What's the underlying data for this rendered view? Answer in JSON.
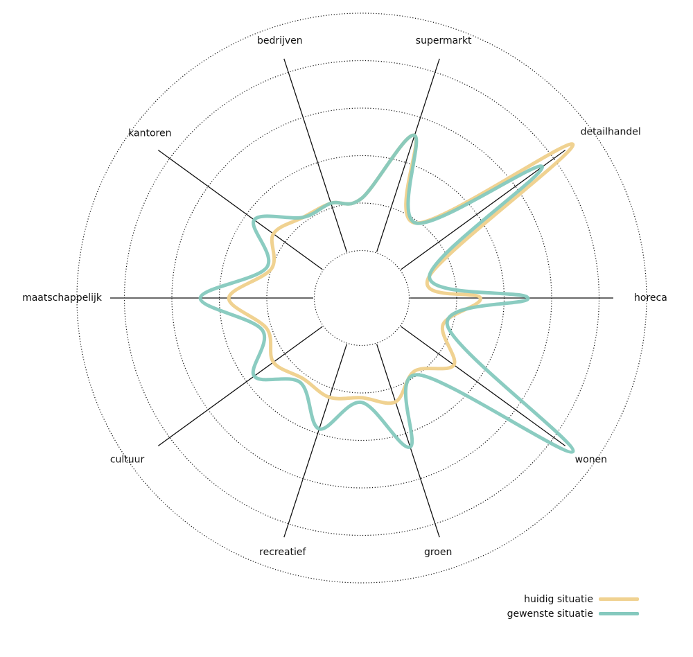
{
  "chart_data": {
    "type": "radar",
    "title": "",
    "axes": [
      "horeca",
      "wonen",
      "groen",
      "recreatief",
      "cultuur",
      "maatschappelijk",
      "kantoren",
      "bedrijven",
      "supermarkt",
      "detailhandel"
    ],
    "ring_count": 6,
    "grid": true,
    "legend_position": "bottom-right",
    "series": [
      {
        "name": "huidig situatie",
        "color": "#F0D291",
        "values": {
          "horeca": 2.5,
          "wonen": 2.4,
          "groen": 2.3,
          "recreatief": 2.2,
          "cultuur": 2.3,
          "maatschappelijk": 2.8,
          "kantoren": 2.3,
          "bedrijven": 2.1,
          "supermarkt": 3.6,
          "detailhandel": 5.5
        },
        "dips": [
          1.8,
          1.9,
          2.1,
          2.1,
          2.1,
          2.0,
          2.1,
          2.1,
          1.95,
          1.5
        ]
      },
      {
        "name": "gewenste situatie",
        "color": "#85C9BE",
        "values": {
          "horeca": 3.5,
          "wonen": 5.5,
          "groen": 3.3,
          "recreatief": 2.9,
          "cultuur": 2.8,
          "maatschappelijk": 3.4,
          "kantoren": 2.8,
          "bedrijven": 2.1,
          "supermarkt": 3.6,
          "detailhandel": 4.7
        },
        "dips": [
          1.9,
          2.0,
          2.2,
          2.2,
          2.2,
          2.1,
          2.1,
          2.1,
          1.95,
          1.5
        ]
      }
    ]
  }
}
